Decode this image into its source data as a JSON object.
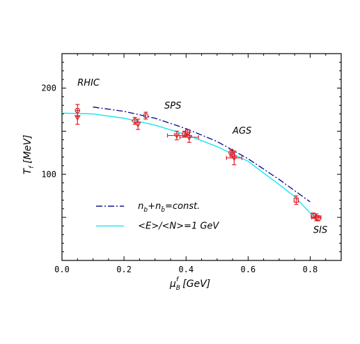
{
  "chart_data": {
    "type": "scatter",
    "xlabel_main": "μ",
    "xlabel_sub": "B",
    "xlabel_sup": "f",
    "xlabel_unit": "[GeV]",
    "ylabel_main": "T",
    "ylabel_sub": "f",
    "ylabel_unit": "[MeV]",
    "xlim": [
      0,
      0.9
    ],
    "ylim": [
      0,
      240
    ],
    "xticks": [
      {
        "v": 0.0,
        "label": "0.0"
      },
      {
        "v": 0.2,
        "label": "0.2"
      },
      {
        "v": 0.4,
        "label": "0.4"
      },
      {
        "v": 0.6,
        "label": "0.6"
      },
      {
        "v": 0.8,
        "label": "0.8"
      }
    ],
    "yticks": [
      {
        "v": 100,
        "label": "100"
      },
      {
        "v": 200,
        "label": "200"
      }
    ],
    "annotations": [
      {
        "text": "RHIC",
        "x": 0.05,
        "y": 203
      },
      {
        "text": "SPS",
        "x": 0.33,
        "y": 176
      },
      {
        "text": "AGS",
        "x": 0.55,
        "y": 147
      },
      {
        "text": "SIS",
        "x": 0.81,
        "y": 32
      }
    ],
    "legend": [
      {
        "label_n": "n",
        "sub1": "b",
        "label_plus": "+n",
        "sub2": "b̄",
        "label_rest": "=const.",
        "style": "dashdot",
        "color": "#00008b"
      },
      {
        "label": "<E>/<N>=1 GeV",
        "style": "solid",
        "color": "#00e5ee"
      }
    ],
    "series": [
      {
        "name": "n_b+n_bbar=const.",
        "style": "dashdot",
        "color": "#00008b",
        "x": [
          0.1,
          0.2,
          0.3,
          0.4,
          0.5,
          0.6,
          0.7,
          0.8
        ],
        "y": [
          178,
          173,
          165,
          153,
          138,
          118,
          94,
          68
        ]
      },
      {
        "name": "<E>/<N>=1 GeV",
        "style": "solid",
        "color": "#00e5ee",
        "x": [
          0.0,
          0.1,
          0.2,
          0.3,
          0.4,
          0.5,
          0.6,
          0.7,
          0.75,
          0.8,
          0.82
        ],
        "y": [
          171,
          170,
          165,
          157,
          146,
          132,
          115,
          88,
          74,
          55,
          50
        ]
      }
    ],
    "points": [
      {
        "x": 0.05,
        "y": 174,
        "xerr": 0,
        "yerr": 7,
        "marker": "circle"
      },
      {
        "x": 0.05,
        "y": 166,
        "xerr": 0,
        "yerr": 8,
        "marker": "triangle"
      },
      {
        "x": 0.235,
        "y": 162,
        "xerr": 0,
        "yerr": 4,
        "marker": "diamond"
      },
      {
        "x": 0.245,
        "y": 158,
        "xerr": 0,
        "yerr": 6,
        "marker": "triangle"
      },
      {
        "x": 0.27,
        "y": 168,
        "xerr": 0,
        "yerr": 4,
        "marker": "circle"
      },
      {
        "x": 0.37,
        "y": 145,
        "xerr": 0.03,
        "yerr": 5,
        "marker": "triangle"
      },
      {
        "x": 0.395,
        "y": 147,
        "xerr": 0,
        "yerr": 3,
        "marker": "circle"
      },
      {
        "x": 0.405,
        "y": 149,
        "xerr": 0,
        "yerr": 3,
        "marker": "square"
      },
      {
        "x": 0.41,
        "y": 143,
        "xerr": 0.03,
        "yerr": 6,
        "marker": "triangle"
      },
      {
        "x": 0.545,
        "y": 125,
        "xerr": 0,
        "yerr": 4,
        "marker": "circle"
      },
      {
        "x": 0.55,
        "y": 123,
        "xerr": 0,
        "yerr": 4,
        "marker": "square"
      },
      {
        "x": 0.555,
        "y": 119,
        "xerr": 0.025,
        "yerr": 8,
        "marker": "triangle"
      },
      {
        "x": 0.755,
        "y": 70,
        "xerr": 0,
        "yerr": 5,
        "marker": "square"
      },
      {
        "x": 0.81,
        "y": 52,
        "xerr": 0,
        "yerr": 3,
        "marker": "square"
      },
      {
        "x": 0.82,
        "y": 50,
        "xerr": 0.015,
        "yerr": 4,
        "marker": "circle"
      },
      {
        "x": 0.825,
        "y": 49,
        "xerr": 0,
        "yerr": 3,
        "marker": "square"
      }
    ]
  }
}
